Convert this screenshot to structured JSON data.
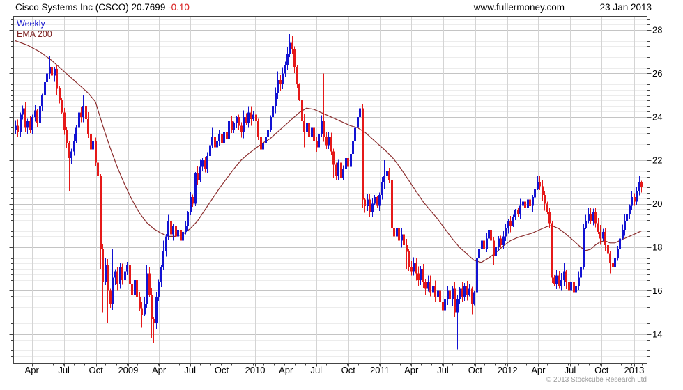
{
  "header": {
    "title": "Cisco Systems Inc (CSCO) 20.7699 ",
    "change": "-0.10",
    "site": "www.fullermoney.com",
    "date": "23 Jan 2013"
  },
  "footer": {
    "copyright": "© 2013 Stockcube Research Ltd"
  },
  "chart_data": {
    "type": "candlestick",
    "title": "Cisco Systems Inc (CSCO) 20.7699 -0.10",
    "timeframe": "Weekly",
    "overlay": "EMA 200",
    "seed": 42,
    "colors": {
      "up": "#1212d2",
      "down": "#e51919",
      "ema": "#8b2d2d",
      "grid_minor": "#ececec",
      "grid_major": "#c4c4c4",
      "grid_vert": "#d4d4d4",
      "frame": "#444444"
    },
    "y_axis": {
      "min": 12.7,
      "max": 28.6,
      "major_step": 2,
      "minor_step": 0.25,
      "tick_labels": [
        28,
        26,
        24,
        22,
        20,
        18,
        16,
        14
      ]
    },
    "x_axis": {
      "labels": [
        "Apr",
        "Jul",
        "Oct",
        "2009",
        "Apr",
        "Jul",
        "Oct",
        "2010",
        "Apr",
        "Jul",
        "Oct",
        "2011",
        "Apr",
        "Jul",
        "Oct",
        "2012",
        "Apr",
        "Jul",
        "Oct",
        "2013"
      ],
      "label_weeks": [
        6.8,
        20.0,
        33.2,
        46.5,
        59.2,
        72.0,
        85.0,
        98.8,
        111.5,
        124.0,
        137.2,
        150.2,
        163.2,
        176.2,
        189.5,
        202.8,
        215.5,
        228.6,
        241.6,
        255.0
      ],
      "weeks_total": 259
    },
    "first_open": 23.4,
    "weeks": [
      23.6,
      23.3,
      24.1,
      24.4,
      23.5,
      23.8,
      23.4,
      24,
      24.3,
      23.7,
      [
        24.5,
        25.6
      ],
      25,
      25.6,
      26,
      [
        26.3,
        26.8
      ],
      25.9,
      26.2,
      25.3,
      24.8,
      24.2,
      23.4,
      22.8,
      [
        22.1,
        null,
        20.6
      ],
      22.4,
      22.9,
      23.5,
      24.2,
      24,
      [
        24.5,
        25
      ],
      23.9,
      23.2,
      22.5,
      22.9,
      21.9,
      21.3,
      [
        17.9,
        null,
        17
      ],
      [
        16.4,
        null,
        15
      ],
      17.2,
      [
        16,
        null,
        14.5
      ],
      15.4,
      [
        16.6,
        17.9
      ],
      16.9,
      16.3,
      17.1,
      16.5,
      16.9,
      17.2,
      16.3,
      15.8,
      16.5,
      15.7,
      15.2,
      [
        14.9,
        null,
        14.3
      ],
      15.4,
      [
        16.8,
        17.2
      ],
      15.8,
      [
        14.7,
        null,
        13.8
      ],
      [
        14.5,
        null,
        13.6
      ],
      15.7,
      16.4,
      17.1,
      [
        17.8,
        18.3
      ],
      18.5,
      19.2,
      18.6,
      19,
      18.5,
      18.8,
      18.3,
      18.7,
      19,
      19.6,
      20.3,
      20,
      21.4,
      21.1,
      21.7,
      22,
      21.6,
      22.2,
      22.7,
      [
        23.1,
        23.5
      ],
      22.6,
      22.9,
      23.2,
      22.8,
      23.3,
      23,
      [
        23.8,
        24.2
      ],
      23.4,
      23.7,
      24,
      23.6,
      23.3,
      24,
      23.7,
      24.2,
      23.9,
      24.1,
      23.8,
      23.1,
      [
        22.5,
        null,
        22
      ],
      22.8,
      23.1,
      23.4,
      24,
      24.5,
      25.1,
      [
        25.7,
        26.1
      ],
      25.5,
      26,
      26.4,
      26.9,
      [
        27.4,
        27.8
      ],
      27.1,
      26.3,
      25.5,
      24.8,
      23.8,
      [
        23.3,
        null,
        22.6
      ],
      23.7,
      23.1,
      23.5,
      22.9,
      22.6,
      23.2,
      23.8,
      [
        23.1,
        26
      ],
      22.7,
      23.1,
      22.4,
      [
        21.8,
        null,
        21.2
      ],
      21.3,
      21.9,
      21.2,
      21.6,
      22.1,
      21.7,
      22.3,
      22.9,
      23.5,
      24,
      [
        24.4,
        24.6
      ],
      [
        20.2,
        null,
        19.8
      ],
      19.9,
      20.2,
      19.6,
      20,
      20.3,
      19.9,
      20.4,
      21,
      [
        21.3,
        22
      ],
      [
        21.5,
        22.3
      ],
      21.1,
      18.9,
      18.5,
      18.9,
      18.3,
      18.6,
      18.1,
      [
        17.8,
        null,
        17
      ],
      17.1,
      16.9,
      17.3,
      16.8,
      16.5,
      17,
      16.4,
      [
        16.1,
        null,
        15.8
      ],
      16.4,
      15.9,
      16.2,
      15.7,
      16,
      15.5,
      [
        15.1,
        null,
        14.9
      ],
      15.6,
      16,
      15.6,
      16.1,
      15,
      [
        15.6,
        null,
        13.3
      ],
      16.1,
      15.7,
      16.2,
      15.8,
      16.1,
      [
        15.4,
        null,
        14.9
      ],
      15.9,
      17.5,
      [
        17.9,
        18.2
      ],
      18.3,
      17.9,
      18.4,
      18.8,
      18.3,
      [
        17.6,
        null,
        17.2
      ],
      18,
      18.4,
      18.1,
      18.5,
      18.9,
      19.2,
      19,
      19.4,
      19.7,
      19.5,
      19.9,
      20.1,
      19.8,
      [
        20.2,
        20.5
      ],
      19.9,
      20.3,
      20.7,
      [
        21,
        21.3
      ],
      20.8,
      20.4,
      20,
      19.6,
      19.1,
      16.6,
      16.3,
      16.7,
      16.2,
      16.5,
      [
        16.9,
        17.3
      ],
      16.4,
      16,
      16.4,
      [
        15.9,
        null,
        15
      ],
      16.2,
      16.6,
      17.1,
      18.9,
      19.2,
      [
        19.5,
        19.8
      ],
      19.2,
      19.6,
      19.1,
      18.7,
      18.4,
      18.7,
      18.1,
      17.7,
      [
        17.3,
        null,
        16.8
      ],
      17.1,
      17.5,
      17.9,
      18.4,
      18.8,
      19.2,
      19.5,
      19.9,
      [
        20.3,
        20.6
      ],
      20.1,
      20.6,
      [
        21,
        21.3
      ],
      20.77
    ],
    "ema200": [
      [
        0,
        27.5
      ],
      [
        5,
        27.3
      ],
      [
        10,
        27
      ],
      [
        15,
        26.6
      ],
      [
        20,
        26.1
      ],
      [
        25,
        25.6
      ],
      [
        30,
        25.1
      ],
      [
        33,
        24.7
      ],
      [
        36,
        23.6
      ],
      [
        39,
        22.6
      ],
      [
        42,
        21.7
      ],
      [
        45,
        20.9
      ],
      [
        48,
        20.2
      ],
      [
        51,
        19.6
      ],
      [
        54,
        19.15
      ],
      [
        57,
        18.85
      ],
      [
        60,
        18.65
      ],
      [
        63,
        18.5
      ],
      [
        66,
        18.5
      ],
      [
        69,
        18.6
      ],
      [
        72,
        18.85
      ],
      [
        75,
        19.2
      ],
      [
        78,
        19.7
      ],
      [
        81,
        20.2
      ],
      [
        84,
        20.7
      ],
      [
        87,
        21.15
      ],
      [
        90,
        21.6
      ],
      [
        93,
        22
      ],
      [
        96,
        22.3
      ],
      [
        99,
        22.55
      ],
      [
        102,
        22.8
      ],
      [
        105,
        23
      ],
      [
        108,
        23.3
      ],
      [
        111,
        23.6
      ],
      [
        114,
        23.9
      ],
      [
        117,
        24.2
      ],
      [
        120,
        24.4
      ],
      [
        123,
        24.35
      ],
      [
        126,
        24.2
      ],
      [
        129,
        24.05
      ],
      [
        132,
        23.9
      ],
      [
        135,
        23.75
      ],
      [
        138,
        23.6
      ],
      [
        141,
        23.5
      ],
      [
        144,
        23.3
      ],
      [
        147,
        23
      ],
      [
        150,
        22.7
      ],
      [
        153,
        22.4
      ],
      [
        156,
        22.05
      ],
      [
        159,
        21.6
      ],
      [
        162,
        21.1
      ],
      [
        165,
        20.6
      ],
      [
        168,
        20.1
      ],
      [
        171,
        19.7
      ],
      [
        174,
        19.3
      ],
      [
        177,
        18.85
      ],
      [
        180,
        18.4
      ],
      [
        183,
        18
      ],
      [
        186,
        17.7
      ],
      [
        189,
        17.4
      ],
      [
        192,
        17.3
      ],
      [
        195,
        17.5
      ],
      [
        198,
        17.75
      ],
      [
        201,
        18.05
      ],
      [
        204,
        18.3
      ],
      [
        207,
        18.45
      ],
      [
        210,
        18.55
      ],
      [
        213,
        18.65
      ],
      [
        216,
        18.8
      ],
      [
        219,
        18.95
      ],
      [
        221,
        19
      ],
      [
        224,
        18.85
      ],
      [
        227,
        18.6
      ],
      [
        230,
        18.3
      ],
      [
        233,
        18
      ],
      [
        235,
        17.85
      ],
      [
        237,
        17.9
      ],
      [
        239,
        18.1
      ],
      [
        241,
        18.25
      ],
      [
        243,
        18.3
      ],
      [
        245,
        18.2
      ],
      [
        247,
        18.2
      ],
      [
        249,
        18.3
      ],
      [
        251,
        18.4
      ],
      [
        253,
        18.5
      ],
      [
        255,
        18.6
      ],
      [
        257,
        18.7
      ],
      [
        258,
        18.75
      ]
    ]
  }
}
